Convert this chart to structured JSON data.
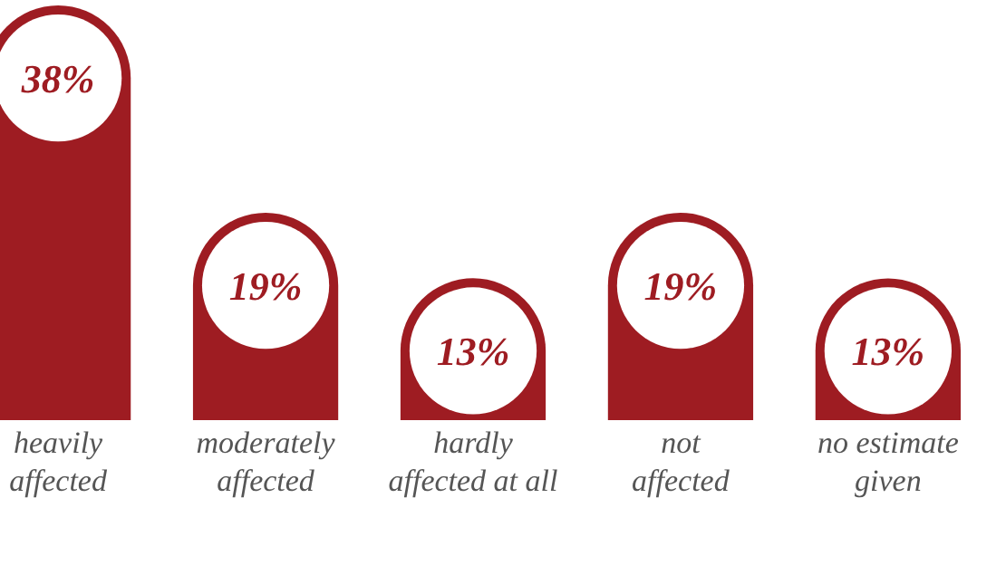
{
  "chart_data": {
    "type": "bar",
    "categories": [
      "heavily\naffected",
      "moderately\naffected",
      "hardly\naffected at all",
      "not\naffected",
      "no estimate\ngiven"
    ],
    "values": [
      38,
      19,
      13,
      19,
      13
    ],
    "color": "#9e1c22",
    "value_labels": [
      "38%",
      "19%",
      "13%",
      "19%",
      "13%"
    ]
  }
}
